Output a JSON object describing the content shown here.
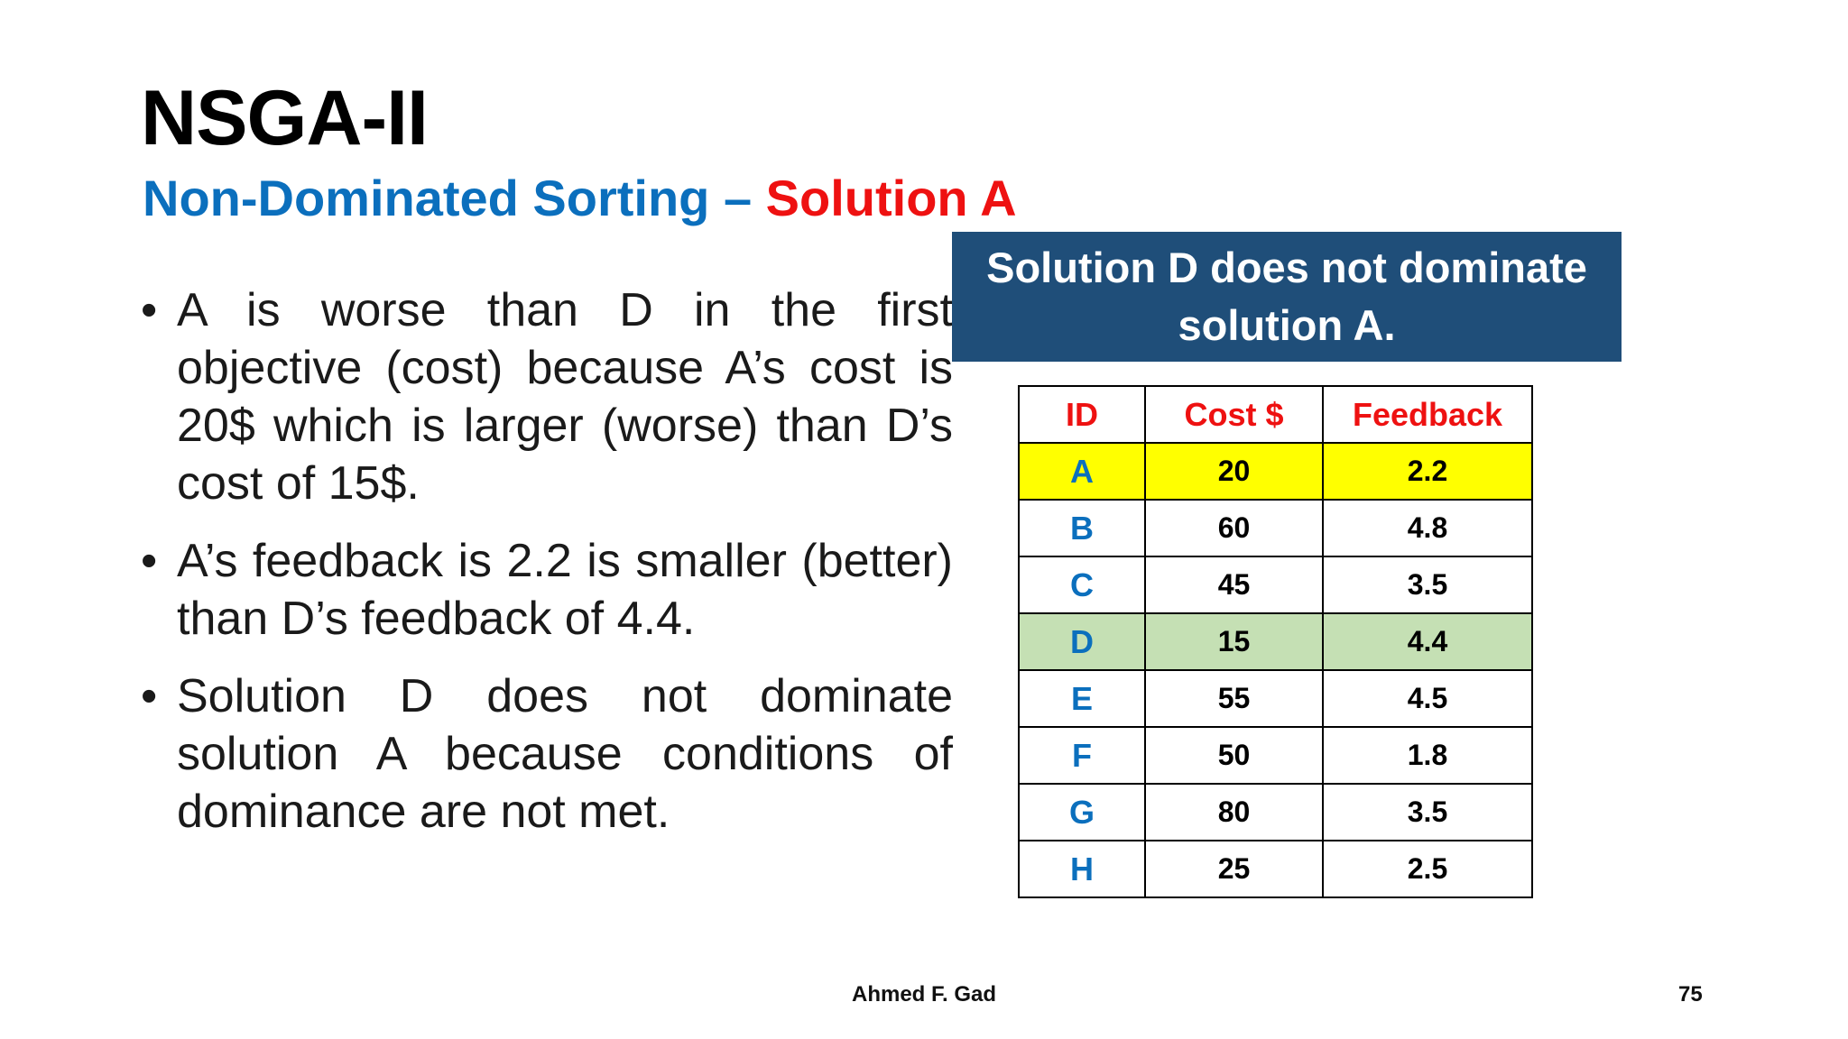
{
  "slide": {
    "title": "NSGA-II",
    "subtitle_part1": "Non-Dominated Sorting – ",
    "subtitle_part2": "Solution A",
    "colors": {
      "subtitle_blue": "#0b6fbd",
      "accent_red": "#ee1111",
      "callout_bg": "#1f4e79",
      "row_a_highlight": "#ffff00",
      "row_d_highlight": "#c5e0b4"
    }
  },
  "bullets": [
    "A is worse than D in the first objective (cost) because A’s cost is 20$ which is larger (worse) than D’s cost of 15$.",
    "A’s feedback is 2.2 is smaller (better) than D’s feedback of 4.4.",
    "Solution D does not dominate solution A because conditions of dominance are not met."
  ],
  "callout": {
    "line1": "Solution D does not dominate",
    "line2": "solution A."
  },
  "table": {
    "headers": [
      "ID",
      "Cost $",
      "Feedback"
    ],
    "rows": [
      {
        "id": "A",
        "cost": "20",
        "feedback": "2.2"
      },
      {
        "id": "B",
        "cost": "60",
        "feedback": "4.8"
      },
      {
        "id": "C",
        "cost": "45",
        "feedback": "3.5"
      },
      {
        "id": "D",
        "cost": "15",
        "feedback": "4.4"
      },
      {
        "id": "E",
        "cost": "55",
        "feedback": "4.5"
      },
      {
        "id": "F",
        "cost": "50",
        "feedback": "1.8"
      },
      {
        "id": "G",
        "cost": "80",
        "feedback": "3.5"
      },
      {
        "id": "H",
        "cost": "25",
        "feedback": "2.5"
      }
    ]
  },
  "footer": {
    "author": "Ahmed F. Gad",
    "page_number": "75"
  }
}
